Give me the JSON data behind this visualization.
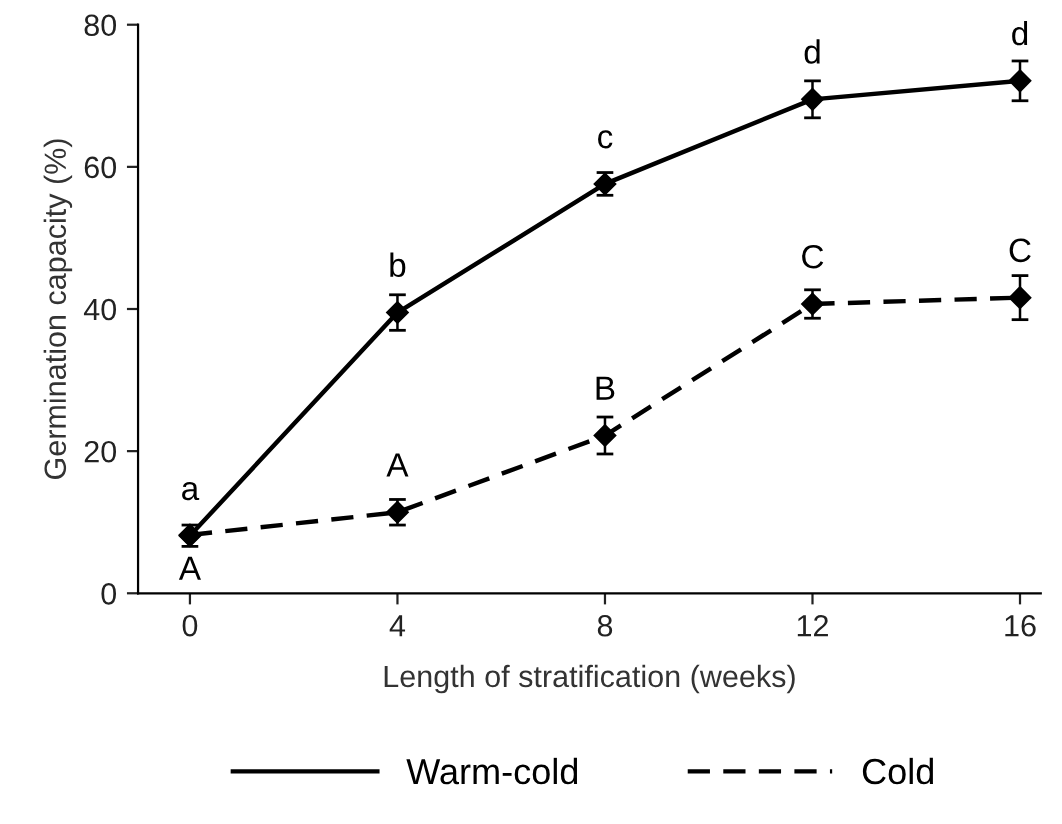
{
  "chart_data": {
    "type": "line",
    "xlabel": "Length of stratification (weeks)",
    "ylabel": "Germination capacity (%)",
    "x": [
      0,
      4,
      8,
      12,
      16
    ],
    "series": [
      {
        "name": "Warm-cold",
        "color": "#000000",
        "line_style": "solid",
        "values": [
          8.1,
          39.5,
          57.6,
          69.5,
          72.1
        ],
        "errors": [
          1.5,
          2.5,
          1.6,
          2.6,
          2.8
        ]
      },
      {
        "name": "Cold",
        "color": "#000000",
        "line_style": "dashed",
        "values": [
          8.2,
          11.4,
          22.2,
          40.7,
          41.6
        ],
        "errors": [
          null,
          1.8,
          2.6,
          2.0,
          3.1
        ]
      }
    ],
    "marker": "diamond",
    "xlim": [
      -1,
      16.4
    ],
    "xticks": [
      0,
      4,
      8,
      12,
      16
    ],
    "ylim": [
      0,
      80
    ],
    "yticks": [
      0,
      20,
      40,
      60,
      80
    ],
    "grid": false,
    "legend": "bottom",
    "annotations": [
      {
        "text": "a",
        "x": 0,
        "y": 8.1
      },
      {
        "text": "b",
        "x": 4,
        "y": 39.5
      },
      {
        "text": "c",
        "x": 8,
        "y": 57.6
      },
      {
        "text": "d",
        "x": 12,
        "y": 69.5
      },
      {
        "text": "d",
        "x": 16,
        "y": 72.1
      },
      {
        "text": "A",
        "x": 0,
        "y": 8.2
      },
      {
        "text": "A",
        "x": 4,
        "y": 11.4
      },
      {
        "text": "B",
        "x": 8,
        "y": 22.2
      },
      {
        "text": "C",
        "x": 12,
        "y": 40.7
      },
      {
        "text": "C",
        "x": 16,
        "y": 41.6
      }
    ]
  }
}
